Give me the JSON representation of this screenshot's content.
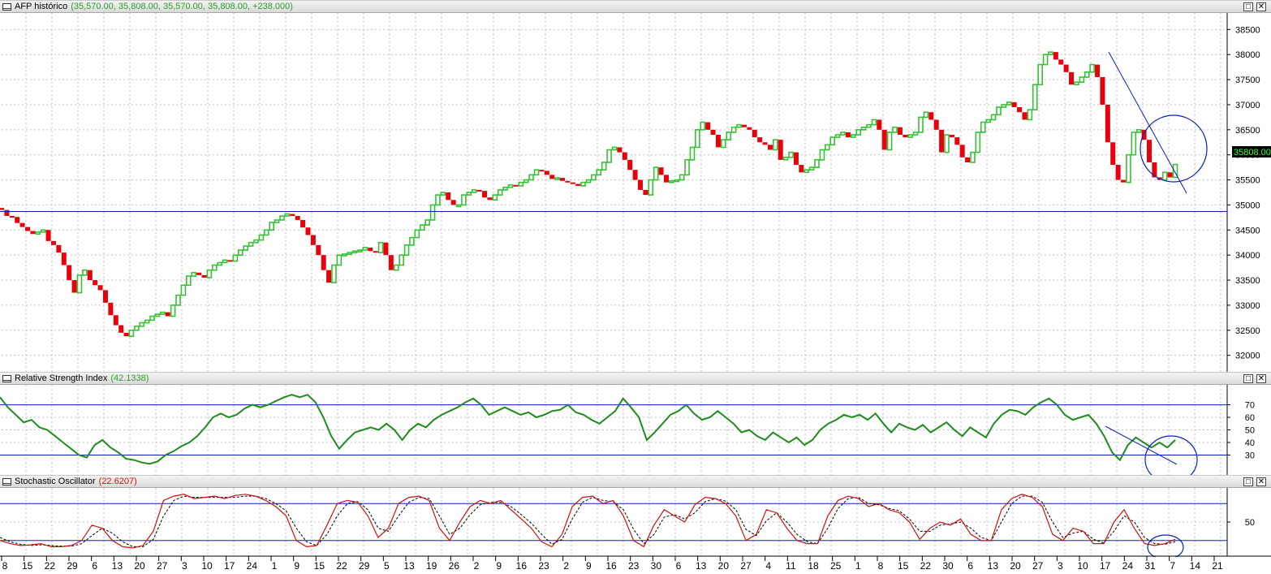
{
  "panes": {
    "price": {
      "title": "AFP histórico",
      "values": "(35,570.00, 35,808.00, 35,570.00, 35,808.00, +238.000)",
      "values_color": "#2a9d2a",
      "last_price_label": "35808.00"
    },
    "rsi": {
      "title": "Relative Strength Index",
      "values": "(42.1338)",
      "values_color": "#2a9d2a"
    },
    "stoch": {
      "title": "Stochastic Oscillator",
      "values": "(22.6207)",
      "values_color": "#d01010"
    }
  },
  "window_buttons": {
    "restore": "□",
    "close": "✕"
  },
  "colors": {
    "up": "#34c234",
    "down": "#e8000b",
    "trendline": "#0b20b8",
    "rsi_line": "#1e8c1e",
    "stoch_k": "#d01010",
    "stoch_d": "#000000",
    "grid": "#c0c0c0"
  },
  "chart_data": [
    {
      "type": "candlestick",
      "title": "AFP histórico",
      "ylim": [
        31800,
        38700
      ],
      "yticks": [
        32000,
        32500,
        33000,
        33500,
        34000,
        34500,
        35000,
        35500,
        36000,
        36500,
        37000,
        37500,
        38000,
        38500
      ],
      "grid": true,
      "horizontal_line": 34870,
      "close": [
        34900,
        34780,
        34760,
        34640,
        34560,
        34480,
        34420,
        34460,
        34500,
        34280,
        34200,
        34050,
        33800,
        33500,
        33250,
        33600,
        33700,
        33500,
        33400,
        33300,
        33050,
        32800,
        32600,
        32450,
        32380,
        32500,
        32580,
        32650,
        32700,
        32780,
        32820,
        32860,
        32780,
        33000,
        33200,
        33400,
        33580,
        33650,
        33600,
        33550,
        33700,
        33800,
        33850,
        33900,
        33880,
        34000,
        34100,
        34180,
        34250,
        34300,
        34400,
        34500,
        34650,
        34700,
        34780,
        34820,
        34780,
        34700,
        34550,
        34400,
        34200,
        34000,
        33700,
        33450,
        33800,
        34000,
        34020,
        34050,
        34080,
        34100,
        34150,
        34080,
        34050,
        34250,
        34000,
        33700,
        33800,
        34000,
        34200,
        34350,
        34500,
        34600,
        34700,
        35000,
        35200,
        35250,
        35100,
        35000,
        35000,
        35200,
        35250,
        35300,
        35280,
        35150,
        35100,
        35200,
        35300,
        35350,
        35400,
        35380,
        35450,
        35500,
        35600,
        35700,
        35680,
        35600,
        35520,
        35540,
        35480,
        35450,
        35420,
        35380,
        35450,
        35500,
        35600,
        35700,
        35850,
        36100,
        36150,
        36050,
        35900,
        35700,
        35500,
        35300,
        35200,
        35500,
        35750,
        35600,
        35450,
        35480,
        35500,
        35600,
        35900,
        36150,
        36500,
        36650,
        36500,
        36400,
        36150,
        36300,
        36450,
        36550,
        36600,
        36550,
        36500,
        36350,
        36250,
        36200,
        36100,
        36300,
        35900,
        35950,
        36050,
        35800,
        35650,
        35700,
        35750,
        35900,
        36100,
        36200,
        36350,
        36400,
        36450,
        36350,
        36400,
        36500,
        36550,
        36600,
        36700,
        36500,
        36100,
        36450,
        36550,
        36400,
        36350,
        36400,
        36450,
        36750,
        36850,
        36700,
        36500,
        36050,
        36400,
        36350,
        36200,
        35950,
        35850,
        36050,
        36450,
        36650,
        36700,
        36800,
        36950,
        37000,
        37050,
        36950,
        36850,
        36700,
        36900,
        37400,
        37800,
        38000,
        38050,
        37900,
        37800,
        37650,
        37400,
        37450,
        37550,
        37650,
        37800,
        37550,
        37000,
        36250,
        35800,
        35500,
        35450,
        36000,
        36450,
        36500,
        36300,
        35850,
        35550,
        35500,
        35650,
        35550,
        35808
      ],
      "last_price_label": "35808.00"
    },
    {
      "type": "line",
      "title": "Relative Strength Index",
      "ylim": [
        18,
        82
      ],
      "yticks": [
        30,
        40,
        50,
        60,
        70
      ],
      "reference_lines": [
        70,
        30
      ],
      "series": [
        {
          "name": "Relative Strength Index",
          "values": [
            76,
            68,
            62,
            56,
            58,
            52,
            50,
            45,
            40,
            35,
            30,
            28,
            38,
            42,
            36,
            32,
            27,
            26,
            24,
            23,
            25,
            30,
            33,
            37,
            40,
            45,
            52,
            60,
            63,
            60,
            62,
            67,
            70,
            68,
            70,
            73,
            76,
            78,
            76,
            78,
            72,
            60,
            45,
            35,
            42,
            48,
            50,
            52,
            50,
            55,
            50,
            42,
            50,
            55,
            52,
            58,
            62,
            65,
            68,
            72,
            75,
            70,
            62,
            65,
            68,
            65,
            62,
            64,
            60,
            62,
            65,
            66,
            70,
            64,
            62,
            58,
            55,
            60,
            65,
            75,
            68,
            60,
            42,
            48,
            55,
            62,
            65,
            70,
            63,
            58,
            60,
            65,
            60,
            55,
            48,
            50,
            45,
            42,
            48,
            44,
            40,
            44,
            38,
            42,
            50,
            55,
            58,
            62,
            60,
            62,
            58,
            63,
            55,
            48,
            55,
            52,
            50,
            54,
            48,
            52,
            56,
            50,
            45,
            52,
            48,
            44,
            55,
            62,
            66,
            65,
            62,
            68,
            72,
            75,
            70,
            62,
            58,
            60,
            62,
            55,
            45,
            32,
            26,
            38,
            44,
            40,
            36,
            40,
            36,
            42
          ]
        }
      ]
    },
    {
      "type": "line",
      "title": "Stochastic Oscillator",
      "ylim": [
        0,
        100
      ],
      "yticks": [
        50
      ],
      "reference_lines": [
        80,
        20
      ],
      "series": [
        {
          "name": "%K",
          "values": [
            20,
            15,
            12,
            13,
            15,
            10,
            10,
            12,
            20,
            45,
            40,
            20,
            10,
            8,
            12,
            35,
            85,
            92,
            95,
            88,
            90,
            92,
            88,
            93,
            95,
            92,
            85,
            75,
            60,
            20,
            10,
            12,
            45,
            80,
            85,
            82,
            60,
            25,
            40,
            80,
            90,
            92,
            85,
            40,
            20,
            50,
            75,
            85,
            80,
            85,
            70,
            55,
            40,
            18,
            10,
            30,
            75,
            90,
            92,
            80,
            85,
            60,
            20,
            10,
            45,
            70,
            60,
            50,
            78,
            90,
            88,
            80,
            60,
            20,
            30,
            70,
            65,
            40,
            20,
            15,
            15,
            60,
            85,
            92,
            88,
            75,
            80,
            70,
            65,
            50,
            22,
            40,
            50,
            45,
            55,
            30,
            20,
            20,
            70,
            88,
            95,
            90,
            75,
            30,
            20,
            40,
            35,
            15,
            15,
            50,
            70,
            40,
            15,
            12,
            15,
            22
          ]
        },
        {
          "name": "%D",
          "values": [
            25,
            18,
            14,
            12,
            13,
            12,
            11,
            11,
            15,
            28,
            40,
            32,
            18,
            10,
            10,
            22,
            60,
            85,
            92,
            90,
            90,
            90,
            90,
            90,
            92,
            92,
            88,
            80,
            68,
            40,
            18,
            12,
            30,
            60,
            80,
            83,
            70,
            40,
            35,
            60,
            82,
            90,
            88,
            60,
            30,
            40,
            62,
            78,
            82,
            82,
            75,
            62,
            48,
            30,
            14,
            22,
            55,
            82,
            90,
            85,
            83,
            70,
            38,
            15,
            30,
            58,
            62,
            55,
            65,
            83,
            88,
            84,
            70,
            38,
            28,
            52,
            65,
            50,
            30,
            18,
            15,
            40,
            72,
            88,
            90,
            80,
            78,
            72,
            68,
            55,
            35,
            35,
            45,
            47,
            50,
            40,
            25,
            20,
            50,
            80,
            92,
            92,
            82,
            50,
            25,
            32,
            35,
            22,
            16,
            35,
            60,
            50,
            25,
            15,
            14,
            18
          ]
        }
      ]
    }
  ],
  "x_axis": {
    "labels": [
      "8",
      "15",
      "22",
      "29",
      "6",
      "13",
      "20",
      "27",
      "3",
      "10",
      "17",
      "24",
      "1",
      "9",
      "15",
      "22",
      "29",
      "5",
      "13",
      "19",
      "26",
      "2",
      "9",
      "16",
      "23",
      "2",
      "9",
      "16",
      "23",
      "30",
      "6",
      "13",
      "20",
      "27",
      "4",
      "11",
      "18",
      "25",
      "1",
      "8",
      "15",
      "22",
      "30",
      "6",
      "13",
      "20",
      "27",
      "3",
      "10",
      "17",
      "24",
      "31",
      "7",
      "14",
      "21"
    ]
  }
}
